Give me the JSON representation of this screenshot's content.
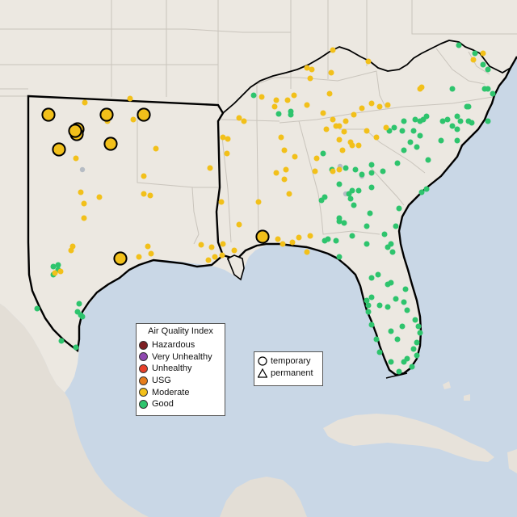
{
  "map": {
    "base_colors": {
      "water": "#c9d7e6",
      "land": "#ece8e1",
      "land_shade": "#e3ded6",
      "border": "#c7c2ba",
      "outline": "#000000"
    }
  },
  "legend": {
    "title": "Air Quality Index",
    "items": [
      {
        "label": "Hazardous",
        "color": "#7e1f23"
      },
      {
        "label": "Very Unhealthy",
        "color": "#8f49b0"
      },
      {
        "label": "Unhealthy",
        "color": "#e8402a"
      },
      {
        "label": "USG",
        "color": "#e67d1c"
      },
      {
        "label": "Moderate",
        "color": "#f2c01a"
      },
      {
        "label": "Good",
        "color": "#2ec46d"
      }
    ]
  },
  "monitor_types": {
    "items": [
      {
        "label": "temporary",
        "shape": "circle-icon"
      },
      {
        "label": "permanent",
        "shape": "triangle-icon"
      }
    ]
  }
}
